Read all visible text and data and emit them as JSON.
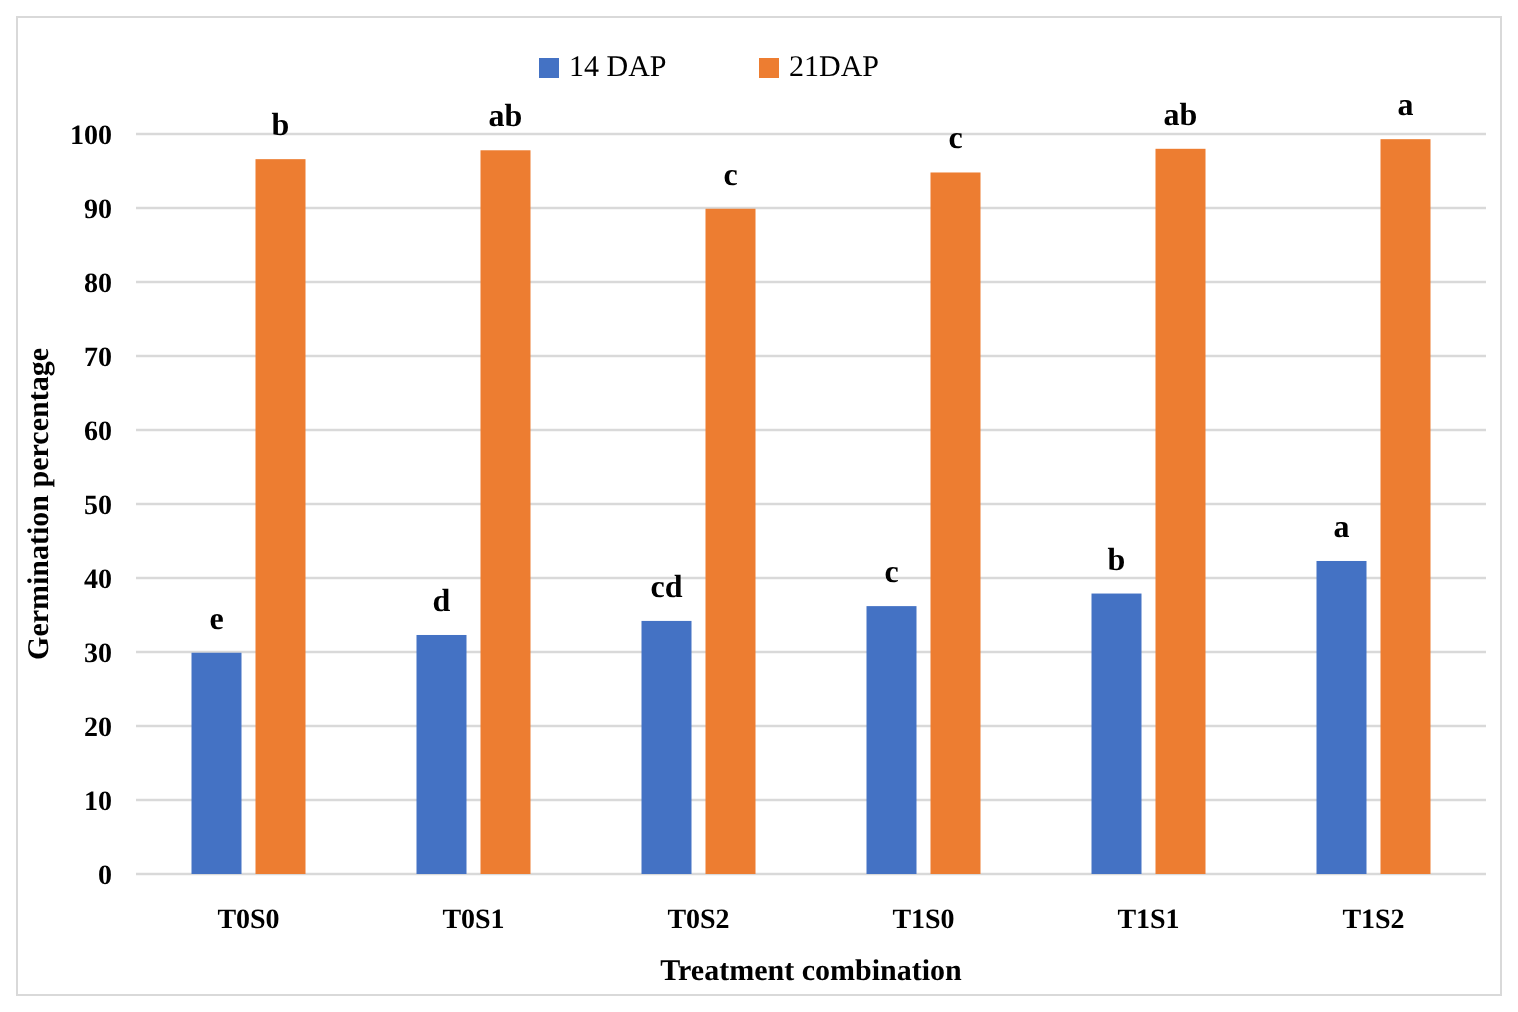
{
  "chart_data": {
    "type": "bar",
    "xlabel": "Treatment combination",
    "ylabel": "Germination percentage",
    "categories": [
      "T0S0",
      "T0S1",
      "T0S2",
      "T1S0",
      "T1S1",
      "T1S2"
    ],
    "series": [
      {
        "name": "14 DAP",
        "color": "#4472c4",
        "values": [
          29.9,
          32.3,
          34.2,
          36.2,
          37.9,
          42.3
        ]
      },
      {
        "name": "21DAP",
        "color": "#ed7d31",
        "values": [
          96.6,
          97.8,
          89.9,
          94.8,
          98.0,
          99.3
        ]
      }
    ],
    "ylim": [
      0,
      100
    ],
    "yticks": [
      0,
      10,
      20,
      30,
      40,
      50,
      60,
      70,
      80,
      90,
      100
    ],
    "grid": "y",
    "legend": "top",
    "annotations": [
      {
        "text": "e",
        "x": "T0S0",
        "y": 29.9
      },
      {
        "text": "b",
        "x": "T0S0",
        "y": 96.6
      },
      {
        "text": "d",
        "x": "T0S1",
        "y": 32.3
      },
      {
        "text": "ab",
        "x": "T0S1",
        "y": 97.8
      },
      {
        "text": "cd",
        "x": "T0S2",
        "y": 34.2
      },
      {
        "text": "c",
        "x": "T0S2",
        "y": 89.9
      },
      {
        "text": "c",
        "x": "T1S0",
        "y": 36.2
      },
      {
        "text": "c",
        "x": "T1S0",
        "y": 94.8
      },
      {
        "text": "b",
        "x": "T1S1",
        "y": 37.9
      },
      {
        "text": "ab",
        "x": "T1S1",
        "y": 98.0
      },
      {
        "text": "a",
        "x": "T1S2",
        "y": 42.3
      },
      {
        "text": "a",
        "x": "T1S2",
        "y": 99.3
      }
    ]
  }
}
